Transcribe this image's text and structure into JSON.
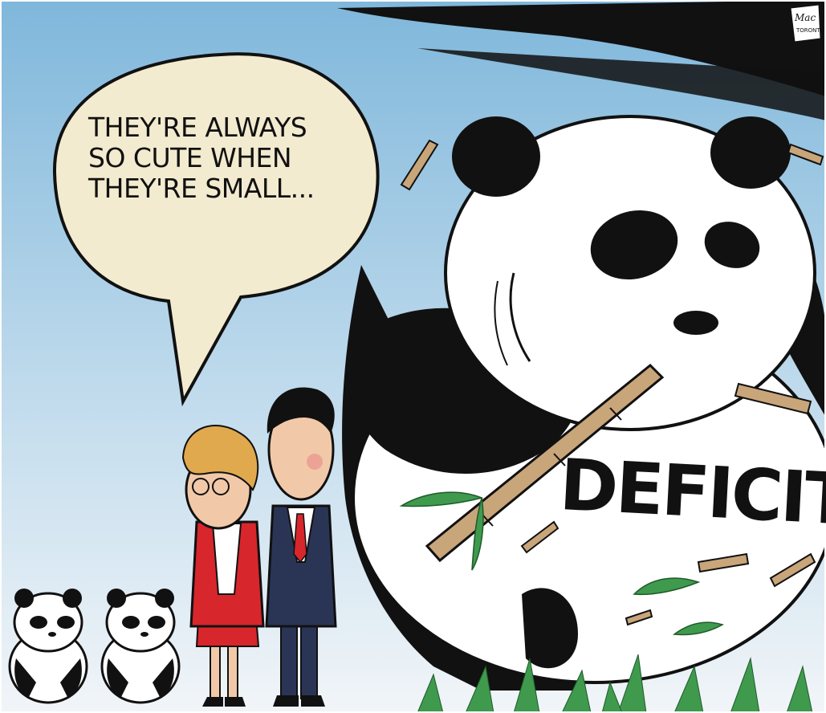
{
  "speech_bubble": {
    "lines": [
      "THEY'RE ALWAYS",
      "SO CUTE WHEN",
      "THEY'RE SMALL..."
    ]
  },
  "panda_label": "DEFICIT",
  "signature_text": "Mackay Toronto Star",
  "colors": {
    "sky_top": "#7fb7db",
    "sky_bottom": "#eef4f8",
    "bubble_fill": "#f3ebcf",
    "bamboo": "#c9a57a",
    "leaf": "#3f9a4d",
    "suit_navy": "#2a3556",
    "jacket_red": "#d7262c",
    "hair_blonde": "#e1a94e"
  }
}
